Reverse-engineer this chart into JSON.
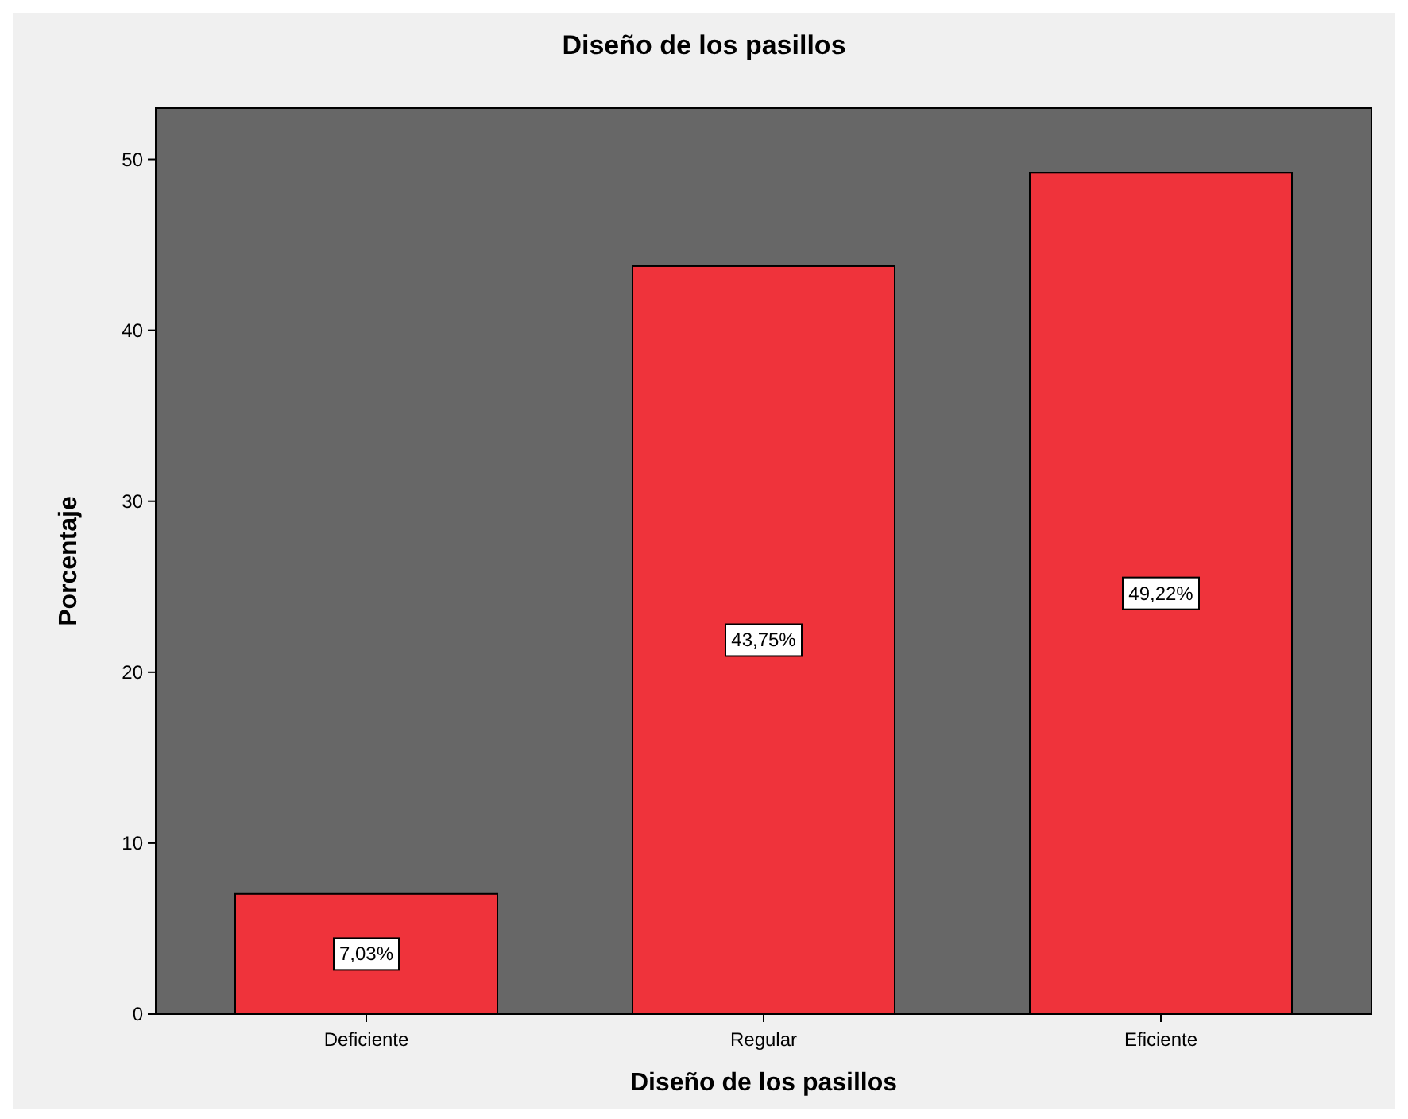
{
  "chart_data": {
    "type": "bar",
    "title": "Diseño de los pasillos",
    "xlabel": "Diseño de los pasillos",
    "ylabel": "Porcentaje",
    "categories": [
      "Deficiente",
      "Regular",
      "Eficiente"
    ],
    "values": [
      7.03,
      43.75,
      49.22
    ],
    "color": "#ef333b",
    "value_labels": [
      "7,03%",
      "43,75%",
      "49,22%"
    ],
    "ylim": [
      0,
      53
    ],
    "yticks": [
      0,
      10,
      20,
      30,
      40,
      50
    ],
    "grid": false
  }
}
